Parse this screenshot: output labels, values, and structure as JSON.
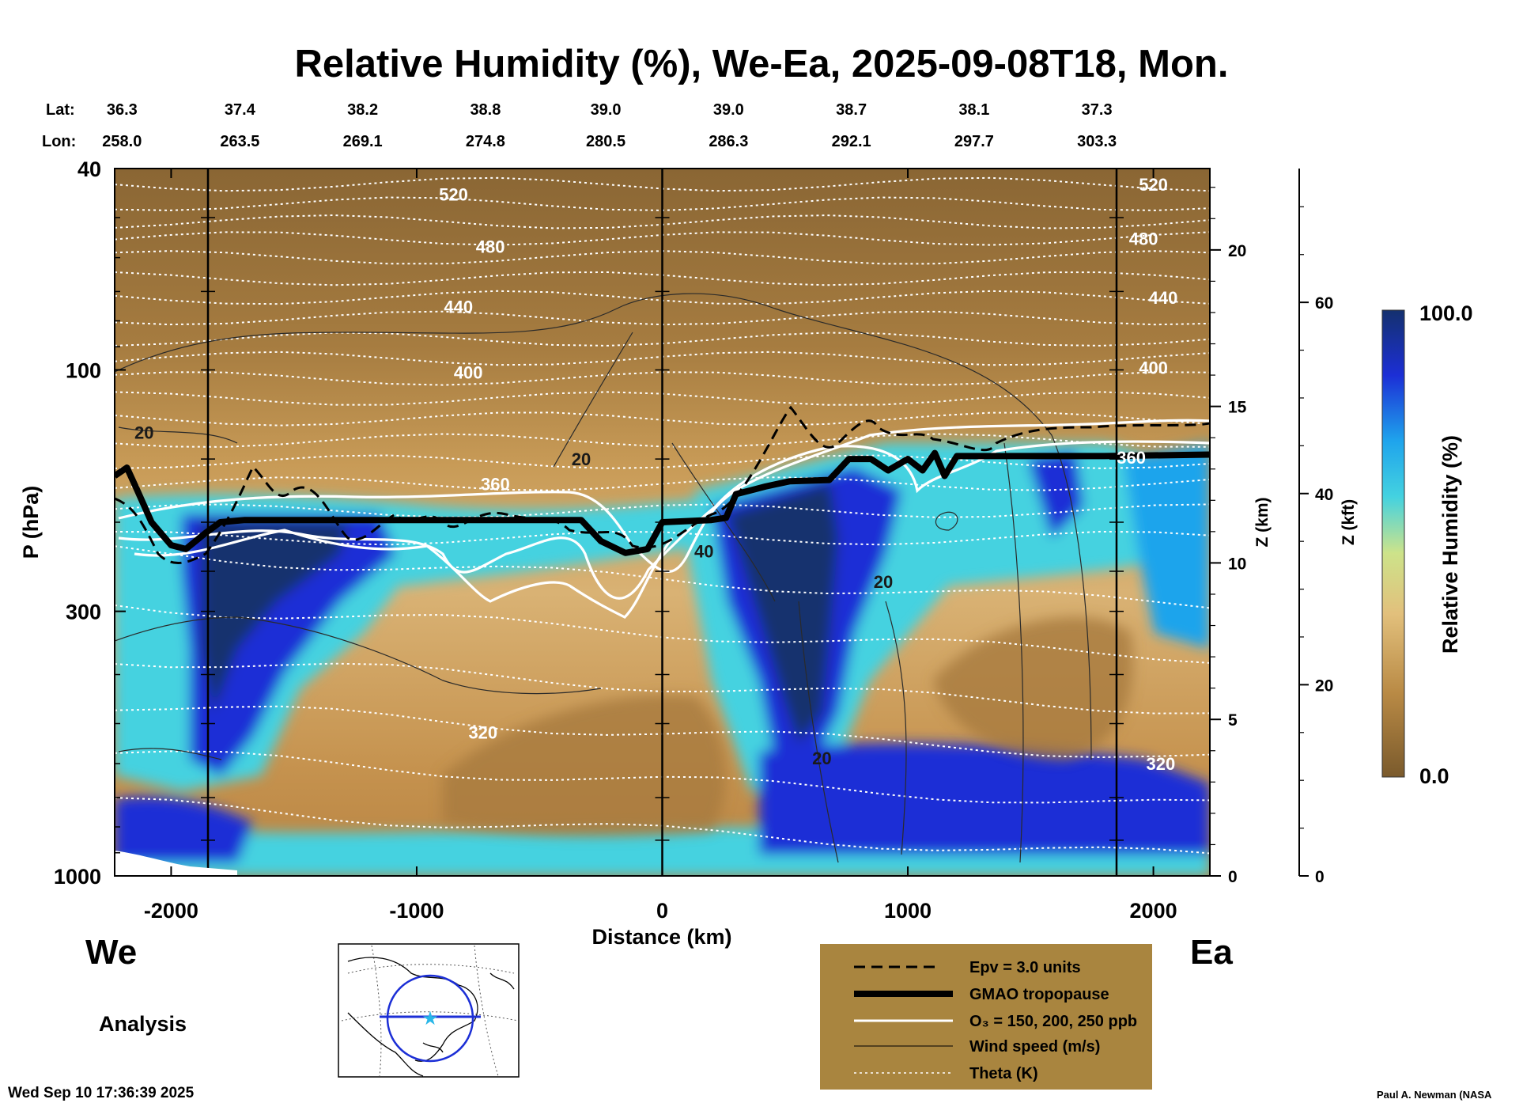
{
  "chart_data": {
    "type": "heatmap",
    "title": "Relative Humidity (%), We-Ea, 2025-09-08T18, Mon.",
    "xlabel": "Distance (km)",
    "ylabel": "P (hPa)",
    "z_km_label": "Z (km)",
    "z_kft_label": "Z (kft)",
    "colorbar_label": "Relative Humidity (%)",
    "colorbar_min_label": "0.0",
    "colorbar_max_label": "100.0",
    "xlim": [
      -2230,
      2230
    ],
    "ylim_hpa": [
      1000,
      40
    ],
    "x_ticks": [
      {
        "value": -2000,
        "label": "-2000"
      },
      {
        "value": -1000,
        "label": "-1000"
      },
      {
        "value": 0,
        "label": "0"
      },
      {
        "value": 1000,
        "label": "1000"
      },
      {
        "value": 2000,
        "label": "2000"
      }
    ],
    "p_ticks": [
      {
        "value": 40,
        "label": "40"
      },
      {
        "value": 100,
        "label": "100"
      },
      {
        "value": 300,
        "label": "300"
      },
      {
        "value": 1000,
        "label": "1000"
      }
    ],
    "z_km_ticks": [
      {
        "value": 0,
        "label": "0"
      },
      {
        "value": 5,
        "label": "5"
      },
      {
        "value": 10,
        "label": "10"
      },
      {
        "value": 15,
        "label": "15"
      },
      {
        "value": 20,
        "label": "20"
      }
    ],
    "z_kft_ticks": [
      {
        "value": 0,
        "label": "0"
      },
      {
        "value": 20,
        "label": "20"
      },
      {
        "value": 40,
        "label": "40"
      },
      {
        "value": 60,
        "label": "60"
      }
    ],
    "lat_header": "Lat:",
    "lon_header": "Lon:",
    "lat_values": [
      "36.3",
      "37.4",
      "38.2",
      "38.8",
      "39.0",
      "39.0",
      "38.7",
      "38.1",
      "37.3"
    ],
    "lon_values": [
      "258.0",
      "263.5",
      "269.1",
      "274.8",
      "280.5",
      "286.3",
      "292.1",
      "297.7",
      "303.3"
    ],
    "latlon_x_km": [
      -2200,
      -1720,
      -1220,
      -720,
      -230,
      270,
      770,
      1270,
      1770
    ],
    "vertical_lines_km": [
      -1850,
      0,
      1850
    ],
    "theta_contours": [
      {
        "label": "520",
        "p": 45,
        "label_x_km": -850
      },
      {
        "label": "480",
        "p": 57,
        "label_x_km": -700
      },
      {
        "label": "440",
        "p": 75,
        "label_x_km": -830
      },
      {
        "label": "400",
        "p": 101,
        "label_x_km": -790
      },
      {
        "label": "360",
        "p": 168,
        "label_x_km": -680
      },
      {
        "label": "320",
        "p": 520,
        "label_x_km": -730
      },
      {
        "label": "520",
        "p": 43,
        "label_x_km": 2000
      },
      {
        "label": "480",
        "p": 55,
        "label_x_km": 1960
      },
      {
        "label": "440",
        "p": 72,
        "label_x_km": 2040
      },
      {
        "label": "400",
        "p": 99,
        "label_x_km": 2000
      },
      {
        "label": "360",
        "p": 149,
        "label_x_km": 1910
      },
      {
        "label": "320",
        "p": 600,
        "label_x_km": 2030
      }
    ],
    "wind_labels": [
      {
        "label": "20",
        "x_km": -2110,
        "p": 133
      },
      {
        "label": "20",
        "x_km": -330,
        "p": 150
      },
      {
        "label": "40",
        "x_km": 170,
        "p": 228
      },
      {
        "label": "20",
        "x_km": 900,
        "p": 262
      },
      {
        "label": "20",
        "x_km": 650,
        "p": 585
      }
    ],
    "tropopause_p": [
      {
        "x": -2230,
        "p": 162
      },
      {
        "x": -2180,
        "p": 156
      },
      {
        "x": -2140,
        "p": 172
      },
      {
        "x": -2080,
        "p": 200
      },
      {
        "x": -2000,
        "p": 222
      },
      {
        "x": -1940,
        "p": 226
      },
      {
        "x": -1860,
        "p": 210
      },
      {
        "x": -1800,
        "p": 200
      },
      {
        "x": -1700,
        "p": 198
      },
      {
        "x": -1500,
        "p": 198
      },
      {
        "x": -1200,
        "p": 198
      },
      {
        "x": -900,
        "p": 198
      },
      {
        "x": -600,
        "p": 198
      },
      {
        "x": -330,
        "p": 198
      },
      {
        "x": -250,
        "p": 218
      },
      {
        "x": -150,
        "p": 230
      },
      {
        "x": -60,
        "p": 226
      },
      {
        "x": 0,
        "p": 200
      },
      {
        "x": 200,
        "p": 198
      },
      {
        "x": 260,
        "p": 196
      },
      {
        "x": 300,
        "p": 176
      },
      {
        "x": 420,
        "p": 170
      },
      {
        "x": 520,
        "p": 166
      },
      {
        "x": 680,
        "p": 165
      },
      {
        "x": 760,
        "p": 150
      },
      {
        "x": 850,
        "p": 150
      },
      {
        "x": 920,
        "p": 158
      },
      {
        "x": 1000,
        "p": 150
      },
      {
        "x": 1060,
        "p": 158
      },
      {
        "x": 1110,
        "p": 146
      },
      {
        "x": 1150,
        "p": 162
      },
      {
        "x": 1200,
        "p": 148
      },
      {
        "x": 1400,
        "p": 148
      },
      {
        "x": 1800,
        "p": 148
      },
      {
        "x": 2230,
        "p": 147
      }
    ],
    "legend": [
      {
        "label": "Epv = 3.0 units",
        "style": "dashed"
      },
      {
        "label": "GMAO tropopause",
        "style": "thick"
      },
      {
        "label": "O₃ = 150, 200, 250 ppb",
        "style": "white"
      },
      {
        "label": "Wind speed (m/s)",
        "style": "thin"
      },
      {
        "label": "Theta (K)",
        "style": "dotted"
      }
    ],
    "west_label": "We",
    "east_label": "Ea",
    "analysis_label": "Analysis"
  },
  "colors": {
    "dry": "#7a5a2c",
    "mid": "#d7b070",
    "moist": "#44d2e0",
    "saturated": "#1a3d9a",
    "legend_bg": "#a9853f"
  },
  "footer": {
    "timestamp": "Wed Sep 10 17:36:39 2025",
    "credit": "Paul A. Newman (NASA"
  }
}
